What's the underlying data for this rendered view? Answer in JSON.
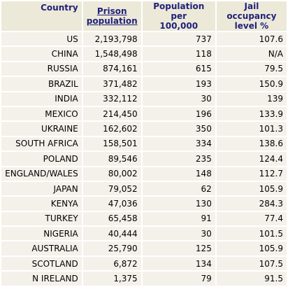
{
  "table": {
    "headers": {
      "country": "Country",
      "prison_population_line1": "Prison",
      "prison_population_line2": "population",
      "population_per_100000_line1": "Population per",
      "population_per_100000_line2": "100,000",
      "jail_occupancy_line1": "Jail occupancy",
      "jail_occupancy_line2": "level %"
    },
    "rows": [
      {
        "country": "US",
        "prison_population": "2,193,798",
        "per_100000": "737",
        "occupancy": "107.6"
      },
      {
        "country": "CHINA",
        "prison_population": "1,548,498",
        "per_100000": "118",
        "occupancy": "N/A"
      },
      {
        "country": "RUSSIA",
        "prison_population": "874,161",
        "per_100000": "615",
        "occupancy": "79.5"
      },
      {
        "country": "BRAZIL",
        "prison_population": "371,482",
        "per_100000": "193",
        "occupancy": "150.9"
      },
      {
        "country": "INDIA",
        "prison_population": "332,112",
        "per_100000": "30",
        "occupancy": "139"
      },
      {
        "country": "MEXICO",
        "prison_population": "214,450",
        "per_100000": "196",
        "occupancy": "133.9"
      },
      {
        "country": "UKRAINE",
        "prison_population": "162,602",
        "per_100000": "350",
        "occupancy": "101.3"
      },
      {
        "country": "SOUTH AFRICA",
        "prison_population": "158,501",
        "per_100000": "334",
        "occupancy": "138.6"
      },
      {
        "country": "POLAND",
        "prison_population": "89,546",
        "per_100000": "235",
        "occupancy": "124.4"
      },
      {
        "country": "ENGLAND/WALES",
        "prison_population": "80,002",
        "per_100000": "148",
        "occupancy": "112.7"
      },
      {
        "country": "JAPAN",
        "prison_population": "79,052",
        "per_100000": "62",
        "occupancy": "105.9"
      },
      {
        "country": "KENYA",
        "prison_population": "47,036",
        "per_100000": "130",
        "occupancy": "284.3"
      },
      {
        "country": "TURKEY",
        "prison_population": "65,458",
        "per_100000": "91",
        "occupancy": "77.4"
      },
      {
        "country": "NIGERIA",
        "prison_population": "40,444",
        "per_100000": "30",
        "occupancy": "101.5"
      },
      {
        "country": "AUSTRALIA",
        "prison_population": "25,790",
        "per_100000": "125",
        "occupancy": "105.9"
      },
      {
        "country": "SCOTLAND",
        "prison_population": "6,872",
        "per_100000": "134",
        "occupancy": "107.5"
      },
      {
        "country": "N IRELAND",
        "prison_population": "1,375",
        "per_100000": "79",
        "occupancy": "91.5"
      }
    ]
  }
}
